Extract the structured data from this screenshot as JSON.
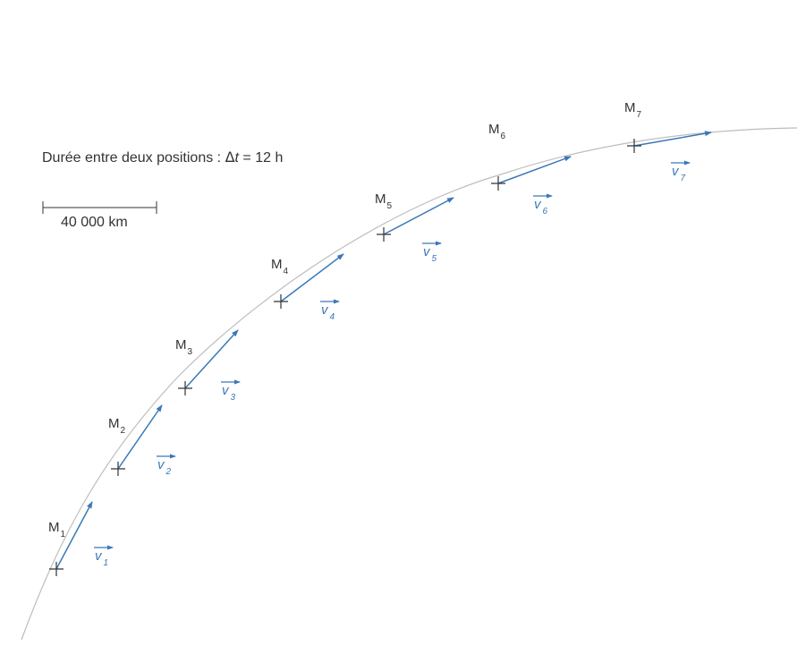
{
  "info": {
    "prefix": "Durée entre deux positions : ",
    "delta_symbol": "Δ",
    "variable": "t",
    "equals_value": " = 12 h"
  },
  "scale": {
    "label": "40 000 km"
  },
  "positions": [
    {
      "label": "M",
      "index": "1",
      "vector_label": "v",
      "vector_index": "1"
    },
    {
      "label": "M",
      "index": "2",
      "vector_label": "v",
      "vector_index": "2"
    },
    {
      "label": "M",
      "index": "3",
      "vector_label": "v",
      "vector_index": "3"
    },
    {
      "label": "M",
      "index": "4",
      "vector_label": "v",
      "vector_index": "4"
    },
    {
      "label": "M",
      "index": "5",
      "vector_label": "v",
      "vector_index": "5"
    },
    {
      "label": "M",
      "index": "6",
      "vector_label": "v",
      "vector_index": "6"
    },
    {
      "label": "M",
      "index": "7",
      "vector_label": "v",
      "vector_index": "7"
    }
  ],
  "colors": {
    "trajectory": "#bdbdbd",
    "vector": "#3a78b8",
    "marker": "#333333",
    "text": "#333333"
  }
}
